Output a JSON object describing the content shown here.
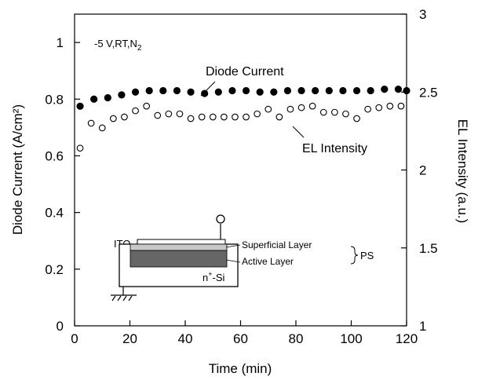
{
  "chart_data": {
    "type": "scatter",
    "xlabel": "Time (min)",
    "ylabel_left": "Diode Current (A/cm²)",
    "ylabel_right": "EL Intensity (a.u.)",
    "xlim": [
      0,
      120
    ],
    "ylim_left": [
      0,
      1.1
    ],
    "ylim_right": [
      1,
      3
    ],
    "x_ticks": [
      0,
      20,
      40,
      60,
      80,
      100,
      120
    ],
    "y_left_ticks": [
      0,
      0.2,
      0.4,
      0.6,
      0.8,
      1
    ],
    "y_left_tick_labels": [
      "0",
      "0.2",
      "0.4",
      "0.6",
      "0.8",
      "1"
    ],
    "y_right_ticks": [
      1,
      1.5,
      2,
      2.5,
      3
    ],
    "y_right_tick_labels": [
      "1",
      "1.5",
      "2",
      "2.5",
      "3"
    ],
    "grid": false,
    "legend": "none",
    "condition_text": "-5 V,RT,N",
    "condition_subscript": "2",
    "series": [
      {
        "name": "Diode Current",
        "axis": "left",
        "marker": "filled-circle",
        "color": "#000000",
        "x": [
          2,
          7,
          12,
          17,
          22,
          27,
          32,
          37,
          42,
          47,
          52,
          57,
          62,
          67,
          72,
          77,
          82,
          87,
          92,
          97,
          102,
          107,
          112,
          117,
          120
        ],
        "y": [
          0.775,
          0.8,
          0.805,
          0.815,
          0.825,
          0.83,
          0.83,
          0.83,
          0.825,
          0.82,
          0.825,
          0.83,
          0.83,
          0.825,
          0.825,
          0.83,
          0.83,
          0.83,
          0.83,
          0.83,
          0.83,
          0.83,
          0.835,
          0.835,
          0.83
        ]
      },
      {
        "name": "EL Intensity",
        "axis": "right",
        "marker": "open-circle",
        "color": "#000000",
        "x": [
          2,
          6,
          10,
          14,
          18,
          22,
          26,
          30,
          34,
          38,
          42,
          46,
          50,
          54,
          58,
          62,
          66,
          70,
          74,
          78,
          82,
          86,
          90,
          94,
          98,
          102,
          106,
          110,
          114,
          118
        ],
        "y": [
          2.14,
          2.3,
          2.27,
          2.33,
          2.34,
          2.38,
          2.41,
          2.35,
          2.36,
          2.36,
          2.33,
          2.34,
          2.34,
          2.34,
          2.34,
          2.34,
          2.36,
          2.39,
          2.34,
          2.39,
          2.4,
          2.41,
          2.37,
          2.37,
          2.36,
          2.33,
          2.39,
          2.4,
          2.41,
          2.41
        ]
      }
    ],
    "annotations": [
      {
        "text": "Diode Current"
      },
      {
        "text": "EL Intensity"
      }
    ]
  },
  "inset_diagram": {
    "labels": {
      "ito": "ITO",
      "superficial": "Superficial Layer",
      "active": "Active Layer",
      "ps": "PS",
      "substrate_main": "n",
      "substrate_sup": "+",
      "substrate_end": "-Si"
    },
    "colors": {
      "superficial": "#c8c8c8",
      "active": "#666666"
    }
  }
}
